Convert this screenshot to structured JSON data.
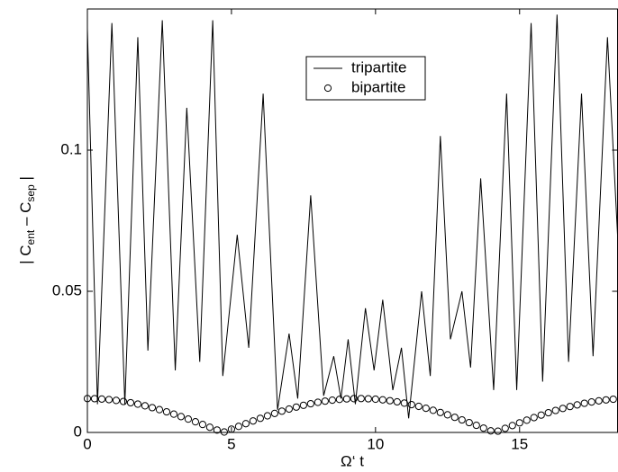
{
  "chart_data": {
    "type": "line",
    "x_label": "Ω‘ t",
    "y_label": [
      "| C",
      "ent",
      " – C",
      "sep",
      " |"
    ],
    "xlim": [
      0,
      18.4
    ],
    "ylim": [
      0,
      0.15
    ],
    "xticks": [
      0,
      5,
      10,
      15
    ],
    "yticks": [
      0,
      0.05,
      0.1
    ],
    "legend": "upper-center",
    "series": [
      {
        "name": "tripartite",
        "color": "#000000",
        "style": "line",
        "x": [
          0,
          0.35,
          0.85,
          1.3,
          1.75,
          2.1,
          2.6,
          3.05,
          3.45,
          3.9,
          4.35,
          4.7,
          5.2,
          5.6,
          6.1,
          6.6,
          7.0,
          7.3,
          7.75,
          8.2,
          8.55,
          8.8,
          9.05,
          9.3,
          9.65,
          9.95,
          10.25,
          10.6,
          10.9,
          11.15,
          11.6,
          11.9,
          12.25,
          12.6,
          13.0,
          13.3,
          13.65,
          14.1,
          14.55,
          14.9,
          15.4,
          15.8,
          16.3,
          16.7,
          17.15,
          17.55,
          18.05,
          18.4
        ],
        "values": [
          0.143,
          0.01,
          0.145,
          0.01,
          0.14,
          0.029,
          0.146,
          0.022,
          0.115,
          0.025,
          0.146,
          0.02,
          0.07,
          0.03,
          0.12,
          0.008,
          0.035,
          0.012,
          0.084,
          0.013,
          0.027,
          0.012,
          0.033,
          0.01,
          0.044,
          0.022,
          0.047,
          0.015,
          0.03,
          0.005,
          0.05,
          0.02,
          0.105,
          0.033,
          0.05,
          0.023,
          0.09,
          0.015,
          0.12,
          0.015,
          0.145,
          0.018,
          0.148,
          0.025,
          0.12,
          0.027,
          0.14,
          0.07
        ]
      },
      {
        "name": "bipartite",
        "color": "#000000",
        "style": "circle",
        "x": [
          0,
          0.25,
          0.5,
          0.75,
          1,
          1.25,
          1.5,
          1.75,
          2,
          2.25,
          2.5,
          2.75,
          3,
          3.25,
          3.5,
          3.75,
          4,
          4.25,
          4.5,
          4.75,
          5,
          5.25,
          5.5,
          5.75,
          6,
          6.25,
          6.5,
          6.75,
          7,
          7.25,
          7.5,
          7.75,
          8,
          8.25,
          8.5,
          8.75,
          9,
          9.25,
          9.5,
          9.75,
          10,
          10.25,
          10.5,
          10.75,
          11,
          11.25,
          11.5,
          11.75,
          12,
          12.25,
          12.5,
          12.75,
          13,
          13.25,
          13.5,
          13.75,
          14,
          14.25,
          14.5,
          14.75,
          15,
          15.25,
          15.5,
          15.75,
          16,
          16.25,
          16.5,
          16.75,
          17,
          17.25,
          17.5,
          17.75,
          18,
          18.25
        ],
        "values": [
          0.012,
          0.01196,
          0.01183,
          0.01163,
          0.01134,
          0.01097,
          0.01053,
          0.01002,
          0.00943,
          0.00878,
          0.00807,
          0.0073,
          0.00648,
          0.00562,
          0.00473,
          0.00378,
          0.00282,
          0.00184,
          0.00085,
          0.00015,
          0.00115,
          0.00214,
          0.00311,
          0.00407,
          0.00499,
          0.00588,
          0.00673,
          0.00754,
          0.00829,
          0.00898,
          0.00961,
          0.01017,
          0.01067,
          0.01109,
          0.01143,
          0.0117,
          0.01188,
          0.01198,
          0.012,
          0.01193,
          0.01178,
          0.01155,
          0.01124,
          0.01084,
          0.01038,
          0.00985,
          0.00924,
          0.00857,
          0.00784,
          0.00706,
          0.00624,
          0.00535,
          0.00444,
          0.00349,
          0.00253,
          0.00154,
          0.00055,
          0.00045,
          0.00144,
          0.00243,
          0.0034,
          0.00434,
          0.00526,
          0.00615,
          0.00699,
          0.00778,
          0.0085,
          0.00918,
          0.00976,
          0.01033,
          0.0108,
          0.01119,
          0.01152,
          0.01176
        ]
      }
    ]
  }
}
